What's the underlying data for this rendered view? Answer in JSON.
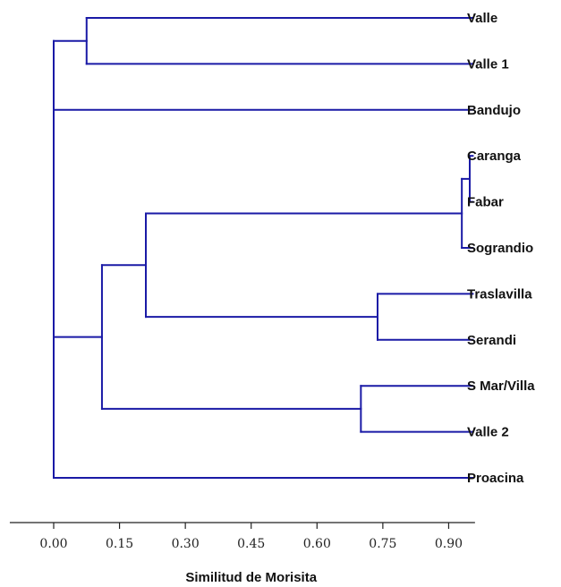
{
  "chart_data": {
    "type": "dendrogram",
    "xlabel": "Similitud de Morisita",
    "xlim": [
      -0.1,
      0.96
    ],
    "xticks": [
      0.0,
      0.15,
      0.3,
      0.45,
      0.6,
      0.75,
      0.9
    ],
    "xtick_labels": [
      "0.00",
      "0.15",
      "0.30",
      "0.45",
      "0.60",
      "0.75",
      "0.90"
    ],
    "leaves": [
      "Valle",
      "Valle 1",
      "Bandujo",
      "Caranga",
      "Fabar",
      "Sograndio",
      "Traslavilla",
      "Serandi",
      "S Mar/Villa",
      "Valle 2",
      "Proacina"
    ],
    "leaf_value": 0.955,
    "merges": [
      {
        "id": "m1",
        "children": [
          "Valle",
          "Valle 1"
        ],
        "similarity": 0.075
      },
      {
        "id": "m2",
        "children": [
          "Caranga",
          "Fabar"
        ],
        "similarity": 0.948
      },
      {
        "id": "m3",
        "children": [
          "m2",
          "Sograndio"
        ],
        "similarity": 0.93
      },
      {
        "id": "m4",
        "children": [
          "Traslavilla",
          "Serandi"
        ],
        "similarity": 0.738
      },
      {
        "id": "m5",
        "children": [
          "m3",
          "m4"
        ],
        "similarity": 0.21
      },
      {
        "id": "m6",
        "children": [
          "S Mar/Villa",
          "Valle 2"
        ],
        "similarity": 0.7
      },
      {
        "id": "m7",
        "children": [
          "m5",
          "m6"
        ],
        "similarity": 0.11
      },
      {
        "id": "m8",
        "children": [
          "m1",
          "Bandujo",
          "m7",
          "Proacina"
        ],
        "similarity": 0.0
      }
    ]
  }
}
